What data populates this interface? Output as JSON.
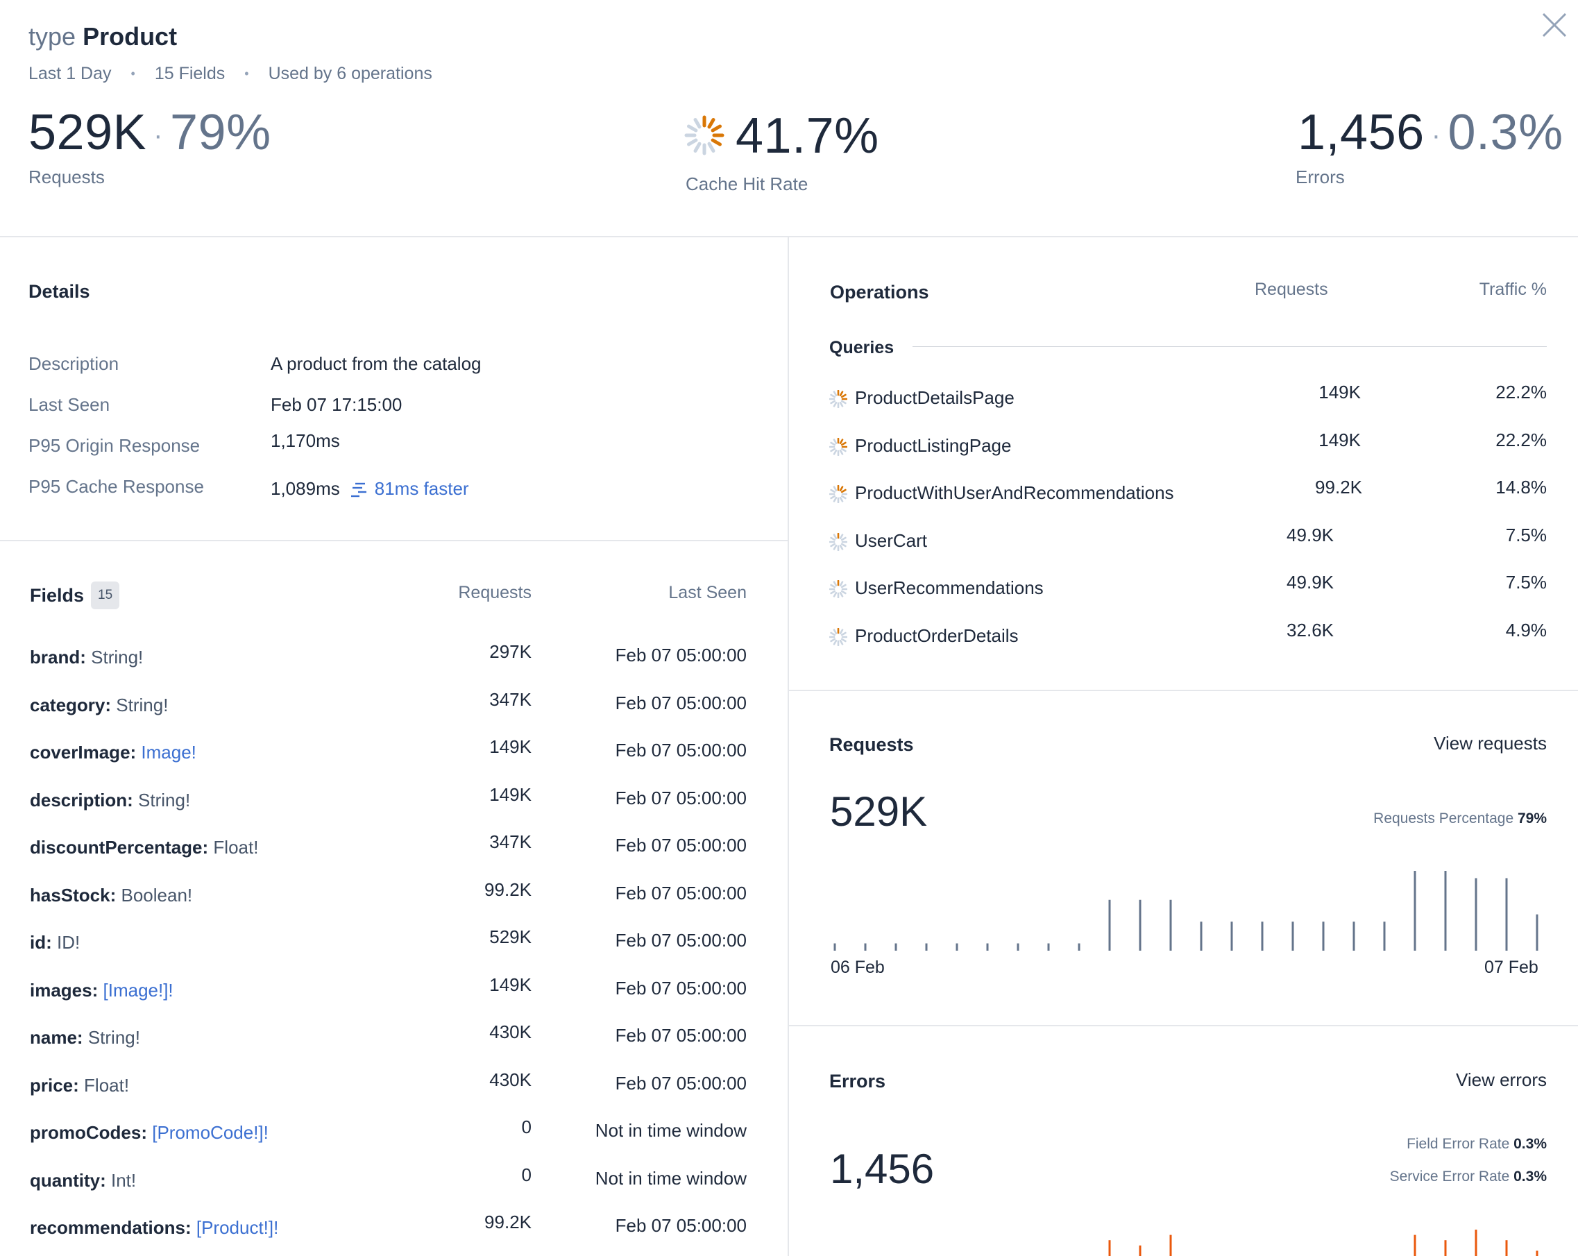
{
  "header": {
    "keyword": "type",
    "type_name": "Product",
    "meta": [
      "Last 1 Day",
      "15 Fields",
      "Used by 6 operations"
    ],
    "requests": {
      "value": "529K",
      "percent": "79%",
      "label": "Requests"
    },
    "cache": {
      "value": "41.7%",
      "label": "Cache Hit Rate"
    },
    "errors": {
      "value": "1,456",
      "percent": "0.3%",
      "label": "Errors"
    },
    "close_icon": "close-icon"
  },
  "details": {
    "title": "Details",
    "rows": [
      {
        "label": "Description",
        "value": "A product from the catalog"
      },
      {
        "label": "Last Seen",
        "value": "Feb 07 17:15:00"
      },
      {
        "label": "P95 Origin Response",
        "value": "1,170ms"
      },
      {
        "label": "P95 Cache Response",
        "value": "1,089ms",
        "extra": "81ms faster"
      }
    ]
  },
  "fields": {
    "title": "Fields",
    "count": "15",
    "col_requests": "Requests",
    "col_last_seen": "Last Seen",
    "rows": [
      {
        "name": "brand:",
        "type": "String!",
        "link": false,
        "requests": "297K",
        "last_seen": "Feb 07 05:00:00"
      },
      {
        "name": "category:",
        "type": "String!",
        "link": false,
        "requests": "347K",
        "last_seen": "Feb 07 05:00:00"
      },
      {
        "name": "coverImage:",
        "type": "Image!",
        "link": true,
        "requests": "149K",
        "last_seen": "Feb 07 05:00:00"
      },
      {
        "name": "description:",
        "type": "String!",
        "link": false,
        "requests": "149K",
        "last_seen": "Feb 07 05:00:00"
      },
      {
        "name": "discountPercentage:",
        "type": "Float!",
        "link": false,
        "requests": "347K",
        "last_seen": "Feb 07 05:00:00"
      },
      {
        "name": "hasStock:",
        "type": "Boolean!",
        "link": false,
        "requests": "99.2K",
        "last_seen": "Feb 07 05:00:00"
      },
      {
        "name": "id:",
        "type": "ID!",
        "link": false,
        "requests": "529K",
        "last_seen": "Feb 07 05:00:00"
      },
      {
        "name": "images:",
        "type": "[Image!]!",
        "link": true,
        "requests": "149K",
        "last_seen": "Feb 07 05:00:00"
      },
      {
        "name": "name:",
        "type": "String!",
        "link": false,
        "requests": "430K",
        "last_seen": "Feb 07 05:00:00"
      },
      {
        "name": "price:",
        "type": "Float!",
        "link": false,
        "requests": "430K",
        "last_seen": "Feb 07 05:00:00"
      },
      {
        "name": "promoCodes:",
        "type": "[PromoCode!]!",
        "link": true,
        "requests": "0",
        "last_seen": "Not in time window"
      },
      {
        "name": "quantity:",
        "type": "Int!",
        "link": false,
        "requests": "0",
        "last_seen": "Not in time window"
      },
      {
        "name": "recommendations:",
        "type": "[Product!]!",
        "link": true,
        "requests": "99.2K",
        "last_seen": "Feb 07 05:00:00"
      }
    ]
  },
  "operations": {
    "title": "Operations",
    "col_requests": "Requests",
    "col_traffic": "Traffic %",
    "group_label": "Queries",
    "rows": [
      {
        "name": "ProductDetailsPage",
        "requests": "149K",
        "traffic": "22.2%",
        "fill": 0.222
      },
      {
        "name": "ProductListingPage",
        "requests": "149K",
        "traffic": "22.2%",
        "fill": 0.222
      },
      {
        "name": "ProductWithUserAndRecommendations",
        "requests": "99.2K",
        "traffic": "14.8%",
        "fill": 0.148
      },
      {
        "name": "UserCart",
        "requests": "49.9K",
        "traffic": "7.5%",
        "fill": 0.075
      },
      {
        "name": "UserRecommendations",
        "requests": "49.9K",
        "traffic": "7.5%",
        "fill": 0.075
      },
      {
        "name": "ProductOrderDetails",
        "requests": "32.6K",
        "traffic": "4.9%",
        "fill": 0.049
      }
    ]
  },
  "requests_panel": {
    "title": "Requests",
    "link": "View requests",
    "value": "529K",
    "pct_label": "Requests Percentage",
    "pct_value": "79%",
    "x_start": "06 Feb",
    "x_end": "07 Feb"
  },
  "errors_panel": {
    "title": "Errors",
    "link": "View errors",
    "value": "1,456",
    "field_rate_label": "Field Error Rate",
    "field_rate_value": "0.3%",
    "service_rate_label": "Service Error Rate",
    "service_rate_value": "0.3%"
  },
  "colors": {
    "accent_orange": "#d97706",
    "bar_gray": "#64748b",
    "error_red": "#ea580c",
    "link_blue": "#3b6fd1"
  },
  "chart_data": [
    {
      "type": "bar",
      "title": "Requests",
      "x_labels": [
        "06 Feb",
        "07 Feb"
      ],
      "values": [
        1,
        1,
        1,
        1,
        1,
        1,
        1,
        1,
        1,
        7,
        7,
        7,
        4,
        4,
        4,
        4,
        4,
        4,
        4,
        11,
        11,
        10,
        10,
        5
      ],
      "ylim": [
        0,
        11
      ]
    },
    {
      "type": "bar",
      "title": "Errors",
      "values": [
        0,
        0,
        0,
        0,
        0,
        0,
        0,
        0,
        0,
        3,
        2,
        4,
        0,
        0,
        0,
        0,
        0,
        0,
        0,
        4,
        3,
        5,
        3,
        1
      ],
      "ylim": [
        0,
        5
      ]
    }
  ]
}
